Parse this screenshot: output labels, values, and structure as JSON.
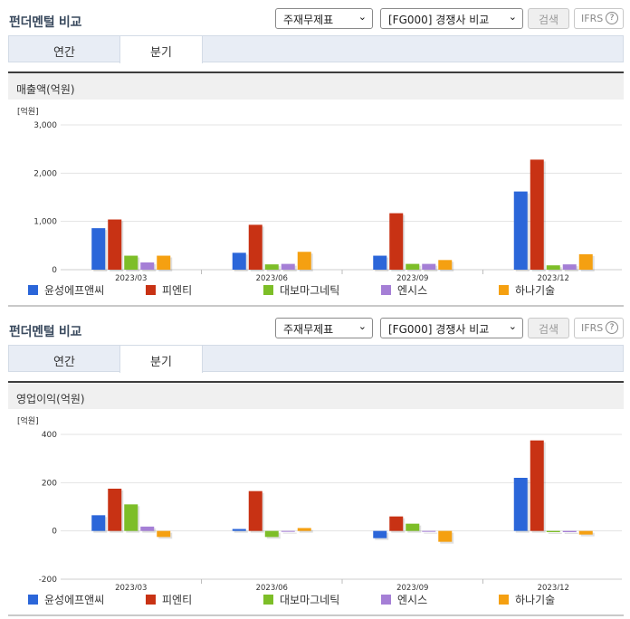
{
  "controls": {
    "select_stock_type": "주재무제표",
    "select_compare": "[FG000] 경쟁사 비교",
    "search_button": "검색",
    "ifrs_button": "IFRS"
  },
  "panels": [
    {
      "title": "펀더멘털 비교",
      "tabs": [
        "연간",
        "분기"
      ],
      "active_tab": "분기",
      "metric_title": "매출액(억원)"
    },
    {
      "title": "펀더멘털 비교",
      "tabs": [
        "연간",
        "분기"
      ],
      "active_tab": "분기",
      "metric_title": "영업이익(억원)"
    }
  ],
  "colors": {
    "series": [
      "#2b66d9",
      "#c83214",
      "#7dbe28",
      "#a57fd6",
      "#f5a011"
    ]
  },
  "chart_data": [
    {
      "type": "bar",
      "title": "매출액(억원)",
      "unit_label": "[억원]",
      "categories": [
        "2023/03",
        "2023/06",
        "2023/09",
        "2023/12"
      ],
      "ylim": [
        0,
        3000
      ],
      "yticks": [
        0,
        1000,
        2000,
        3000
      ],
      "ytick_labels": [
        "0",
        "1,000",
        "2,000",
        "3,000"
      ],
      "grid": true,
      "legend_position": "bottom",
      "series": [
        {
          "name": "윤성에프앤씨",
          "values": [
            860,
            350,
            290,
            1620
          ]
        },
        {
          "name": "피엔티",
          "values": [
            1040,
            930,
            1170,
            2280
          ]
        },
        {
          "name": "대보마그네틱",
          "values": [
            290,
            110,
            120,
            90
          ]
        },
        {
          "name": "엔시스",
          "values": [
            150,
            120,
            120,
            110
          ]
        },
        {
          "name": "하나기술",
          "values": [
            290,
            370,
            200,
            320
          ]
        }
      ]
    },
    {
      "type": "bar",
      "title": "영업이익(억원)",
      "unit_label": "[억원]",
      "categories": [
        "2023/03",
        "2023/06",
        "2023/09",
        "2023/12"
      ],
      "ylim": [
        -200,
        400
      ],
      "yticks": [
        -200,
        0,
        200,
        400
      ],
      "ytick_labels": [
        "-200",
        "0",
        "200",
        "400"
      ],
      "grid": true,
      "legend_position": "bottom",
      "series": [
        {
          "name": "윤성에프앤씨",
          "values": [
            65,
            8,
            -30,
            220
          ]
        },
        {
          "name": "피엔티",
          "values": [
            175,
            165,
            60,
            375
          ]
        },
        {
          "name": "대보마그네틱",
          "values": [
            110,
            -25,
            30,
            -5
          ]
        },
        {
          "name": "엔시스",
          "values": [
            18,
            0,
            0,
            -5
          ]
        },
        {
          "name": "하나기술",
          "values": [
            -25,
            12,
            -45,
            -15
          ]
        }
      ]
    }
  ]
}
